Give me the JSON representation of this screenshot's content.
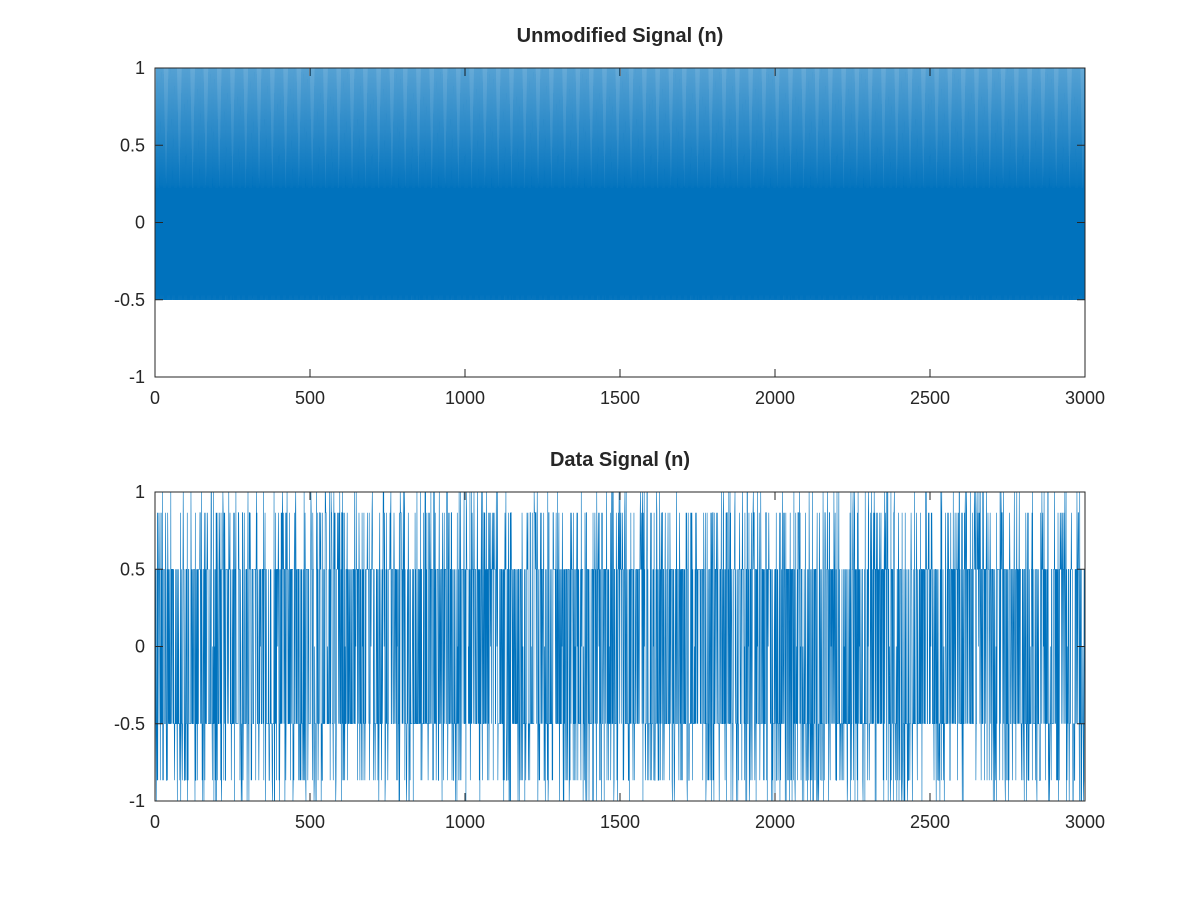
{
  "chart_data": [
    {
      "type": "line",
      "title": "Unmodified Signal (n)",
      "xlabel": "",
      "ylabel": "",
      "xlim": [
        0,
        3000
      ],
      "ylim": [
        -1,
        1
      ],
      "xticks": [
        "0",
        "500",
        "1000",
        "1500",
        "2000",
        "2500",
        "3000"
      ],
      "yticks": [
        "-1",
        "-0.5",
        "0",
        "0.5",
        "1"
      ],
      "grid": false,
      "color": "#0072bd",
      "series": [
        {
          "n_samples": 3000,
          "period": 3,
          "pattern": [
            1,
            -0.5,
            -0.5
          ],
          "description": "periodic sequence"
        }
      ]
    },
    {
      "type": "line",
      "title": "Data Signal (n)",
      "xlabel": "",
      "ylabel": "",
      "xlim": [
        0,
        3000
      ],
      "ylim": [
        -1,
        1
      ],
      "xticks": [
        "0",
        "500",
        "1000",
        "1500",
        "2000",
        "2500",
        "3000"
      ],
      "yticks": [
        "-1",
        "-0.5",
        "0",
        "0.5",
        "1"
      ],
      "grid": false,
      "color": "#0072bd",
      "series": [
        {
          "n_samples": 3000,
          "levels": [
            1,
            0.866,
            0.5,
            0,
            -0.5,
            -0.866,
            -1
          ],
          "description": "sequence switching between discrete levels"
        }
      ]
    }
  ]
}
